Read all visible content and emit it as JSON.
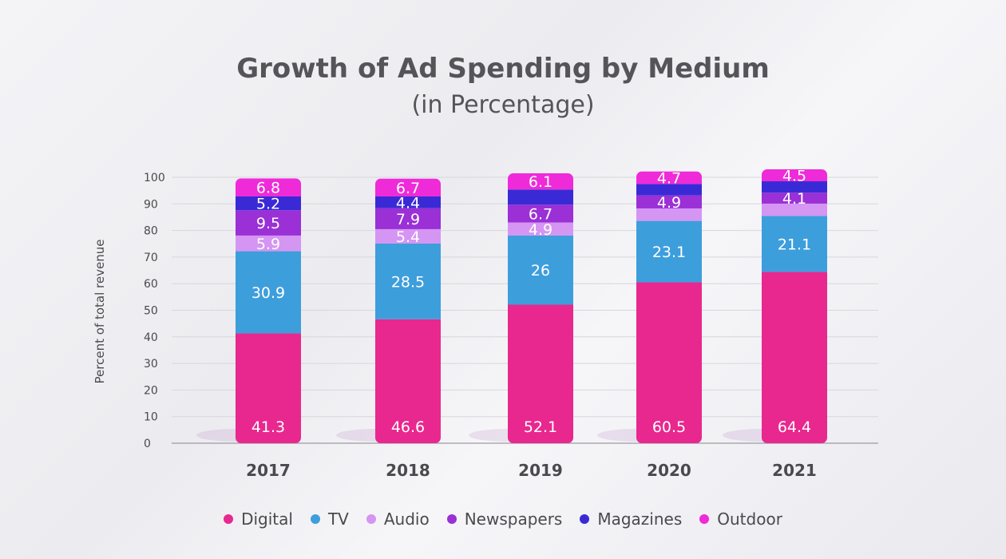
{
  "chart_data": {
    "type": "bar",
    "stacked": true,
    "title": "Growth of Ad Spending by Medium",
    "subtitle": "(in Percentage)",
    "xlabel": "",
    "ylabel": "Percent of total revenue",
    "ylim": [
      0,
      100
    ],
    "yticks": [
      0,
      10,
      20,
      30,
      40,
      50,
      60,
      70,
      80,
      90,
      100
    ],
    "grid": true,
    "legend_position": "bottom",
    "categories": [
      "2017",
      "2018",
      "2019",
      "2020",
      "2021"
    ],
    "series": [
      {
        "name": "Digital",
        "color": "#e8288f",
        "values": [
          41.3,
          46.6,
          52.1,
          60.5,
          64.4
        ],
        "labels": [
          "41.3",
          "46.6",
          "52.1",
          "60.5",
          "64.4"
        ]
      },
      {
        "name": "TV",
        "color": "#3d9edc",
        "values": [
          30.9,
          28.5,
          26,
          23.1,
          21.1
        ],
        "labels": [
          "30.9",
          "28.5",
          "26",
          "23.1",
          "21.1"
        ]
      },
      {
        "name": "Audio",
        "color": "#d595f2",
        "values": [
          5.9,
          5.4,
          4.9,
          4.7,
          4.6
        ],
        "labels": [
          "5.9",
          "5.4",
          "4.9",
          "",
          ""
        ]
      },
      {
        "name": "Newspapers",
        "color": "#9a30d6",
        "values": [
          9.5,
          7.9,
          6.7,
          4.9,
          4.1
        ],
        "labels": [
          "9.5",
          "7.9",
          "6.7",
          "4.9",
          "4.1"
        ]
      },
      {
        "name": "Magazines",
        "color": "#3a2ad6",
        "values": [
          5.2,
          4.4,
          5.7,
          4.3,
          4.3
        ],
        "labels": [
          "5.2",
          "4.4",
          "",
          "",
          ""
        ]
      },
      {
        "name": "Outdoor",
        "color": "#ef2ad8",
        "values": [
          6.8,
          6.7,
          6.1,
          4.7,
          4.5
        ],
        "labels": [
          "6.8",
          "6.7",
          "6.1",
          "4.7",
          "4.5"
        ]
      }
    ]
  }
}
